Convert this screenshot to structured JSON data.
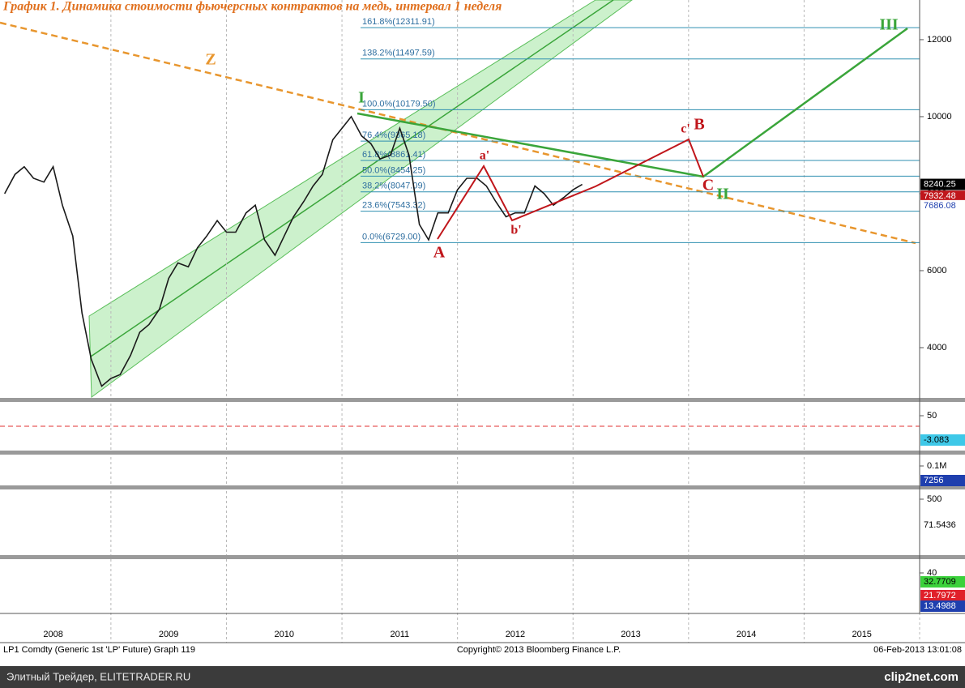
{
  "chart_data": {
    "type": "line",
    "title": "График 1.   Динамика стоимости фьючерсных контрактов на медь, интервал 1 неделя",
    "color": "#1a1a1a",
    "x": [
      2008.08,
      2008.17,
      2008.25,
      2008.33,
      2008.42,
      2008.5,
      2008.58,
      2008.67,
      2008.75,
      2008.83,
      2008.92,
      2009.0,
      2009.08,
      2009.17,
      2009.25,
      2009.33,
      2009.42,
      2009.5,
      2009.58,
      2009.67,
      2009.75,
      2009.83,
      2009.92,
      2010.0,
      2010.08,
      2010.17,
      2010.25,
      2010.33,
      2010.42,
      2010.5,
      2010.58,
      2010.67,
      2010.75,
      2010.83,
      2010.92,
      2011.0,
      2011.08,
      2011.17,
      2011.25,
      2011.33,
      2011.42,
      2011.5,
      2011.58,
      2011.67,
      2011.75,
      2011.83,
      2011.92,
      2012.0,
      2012.08,
      2012.17,
      2012.25,
      2012.33,
      2012.42,
      2012.5,
      2012.58,
      2012.67,
      2012.75,
      2012.83,
      2012.92,
      2013.0,
      2013.08
    ],
    "values": [
      8000,
      8500,
      8700,
      8400,
      8300,
      8700,
      7700,
      6900,
      4900,
      3700,
      3000,
      3200,
      3300,
      3800,
      4400,
      4600,
      5000,
      5800,
      6200,
      6100,
      6600,
      6900,
      7300,
      7000,
      7000,
      7500,
      7700,
      6800,
      6400,
      6900,
      7400,
      7800,
      8200,
      8500,
      9400,
      9700,
      10000,
      9500,
      9300,
      8900,
      9000,
      9700,
      9000,
      7200,
      6800,
      7500,
      7500,
      8100,
      8400,
      8400,
      8200,
      7800,
      7400,
      7500,
      7500,
      8200,
      8000,
      7700,
      7900,
      8100,
      8240
    ],
    "xlim": [
      2008.04,
      2016.0
    ],
    "xticks": [
      {
        "value": 2008.5,
        "label": "2008"
      },
      {
        "value": 2009.5,
        "label": "2009"
      },
      {
        "value": 2010.5,
        "label": "2010"
      },
      {
        "value": 2011.5,
        "label": "2011"
      },
      {
        "value": 2012.5,
        "label": "2012"
      },
      {
        "value": 2013.5,
        "label": "2013"
      },
      {
        "value": 2014.5,
        "label": "2014"
      },
      {
        "value": 2015.5,
        "label": "2015"
      }
    ],
    "ylim": [
      2716,
      13030
    ],
    "yticks": [
      4000,
      6000,
      8000,
      10000,
      12000
    ],
    "fib_levels": [
      {
        "value": 12311.91,
        "label": "161.8%(12311.91)"
      },
      {
        "value": 11497.59,
        "label": "138.2%(11497.59)"
      },
      {
        "value": 10179.5,
        "label": "100.0%(10179.50)"
      },
      {
        "value": 9365.18,
        "label": "76.4%(9365.18)"
      },
      {
        "value": 8861.41,
        "label": "61.8%(8861.41)"
      },
      {
        "value": 8454.25,
        "label": "50.0%(8454.25)"
      },
      {
        "value": 8047.09,
        "label": "38.2%(8047.09)"
      },
      {
        "value": 7543.32,
        "label": "23.6%(7543.32)"
      },
      {
        "value": 6729,
        "label": "0.0%(6729.00)"
      }
    ],
    "price_labels": [
      8240.25,
      7932.48,
      7686.08
    ],
    "price_label_colors": [
      "#000000",
      "#c0161b",
      "#ffffff"
    ],
    "annotations": [
      {
        "text": "Z",
        "color": "#e8962e"
      },
      {
        "text": "I",
        "color": "#3aa53a"
      },
      {
        "text": "III",
        "color": "#3aa53a"
      },
      {
        "text": "A",
        "color": "#c0161b"
      },
      {
        "text": "a'",
        "color": "#c0161b"
      },
      {
        "text": "b'",
        "color": "#c0161b"
      },
      {
        "text": "c'",
        "color": "#c0161b"
      },
      {
        "text": "B",
        "color": "#c0161b"
      },
      {
        "text": "C",
        "color": "#c0161b"
      },
      {
        "text": "II",
        "color": "#3aa53a"
      }
    ],
    "panels": [
      {
        "ticks": [
          50
        ],
        "labels": [
          -3.083
        ],
        "colors": [
          "#3ec8e8"
        ]
      },
      {
        "ticks": [
          {
            "value": 100000,
            "label": "0.1M"
          }
        ],
        "labels": [
          7256
        ],
        "colors": [
          "#1f3fae"
        ]
      },
      {
        "ticks": [
          500
        ],
        "labels": [
          71.5436
        ],
        "colors": [
          "#ffffff"
        ]
      },
      {
        "ticks": [
          40
        ],
        "labels": [
          32.7709,
          21.7972,
          13.4988
        ],
        "colors": [
          "#3bd13b",
          "#e0202a",
          "#1f3fae"
        ]
      }
    ],
    "footer": {
      "left": "LP1 Comdty (Generic 1st 'LP' Future) Graph 119",
      "center": "Copyright© 2013 Bloomberg Finance L.P.",
      "right": "06-Feb-2013 13:01:08"
    },
    "banner": {
      "left": "Элитный Трейдер, ELITETRADER.RU",
      "right": "clip2net.com"
    }
  }
}
